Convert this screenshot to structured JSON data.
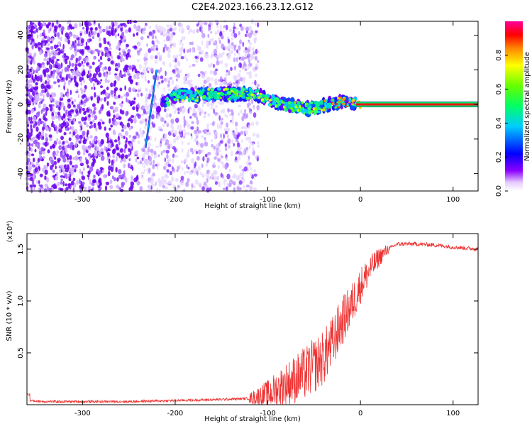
{
  "title": "C2E4.2023.166.23.12.G12",
  "chart_data": [
    {
      "type": "heatmap",
      "xlabel": "Height of straight line (km)",
      "ylabel": "Frequency (Hz)",
      "xlim": [
        -360,
        127
      ],
      "ylim": [
        -50,
        48
      ],
      "xticks": [
        -300,
        -200,
        -100,
        0,
        100
      ],
      "yticks": [
        -40,
        -20,
        0,
        20,
        40
      ],
      "colorbar": {
        "label": "Normalized spectral amplitude",
        "range": [
          0,
          1
        ],
        "ticks": [
          0.0,
          0.2,
          0.4,
          0.6,
          0.8
        ]
      },
      "ridge": {
        "x": [
          -215,
          -200,
          -180,
          -160,
          -140,
          -120,
          -105,
          -90,
          -75,
          -60,
          -50,
          -40,
          -30,
          -20,
          -10,
          0,
          127
        ],
        "freq": [
          0,
          5,
          5,
          6,
          6,
          6,
          4,
          1,
          -1,
          -2,
          -2,
          -1,
          0,
          1,
          1,
          0,
          0
        ]
      },
      "noise_region_x": [
        -360,
        -120
      ],
      "streak": {
        "x": [
          -232,
          -220
        ],
        "freq": [
          -25,
          20
        ]
      }
    },
    {
      "type": "line",
      "xlabel": "Height of straight line (km)",
      "ylabel": "SNR (10 * v/v)",
      "y_multiplier": "(x10⁴)",
      "xlim": [
        -360,
        127
      ],
      "ylim": [
        0,
        1.65
      ],
      "xticks": [
        -300,
        -200,
        -100,
        0,
        100
      ],
      "yticks": [
        0.5,
        1.0,
        1.5
      ],
      "color": "#ee3333",
      "series": [
        {
          "x": [
            -360,
            -340,
            -300,
            -250,
            -200,
            -150,
            -120,
            -100,
            -80,
            -60,
            -40,
            -30,
            -20,
            -10,
            0,
            10,
            20,
            30,
            40,
            60,
            80,
            100,
            127
          ],
          "y": [
            0.04,
            0.03,
            0.03,
            0.03,
            0.04,
            0.05,
            0.06,
            0.1,
            0.2,
            0.3,
            0.45,
            0.6,
            0.8,
            0.95,
            1.15,
            1.3,
            1.42,
            1.5,
            1.55,
            1.55,
            1.54,
            1.52,
            1.5
          ]
        }
      ]
    }
  ]
}
